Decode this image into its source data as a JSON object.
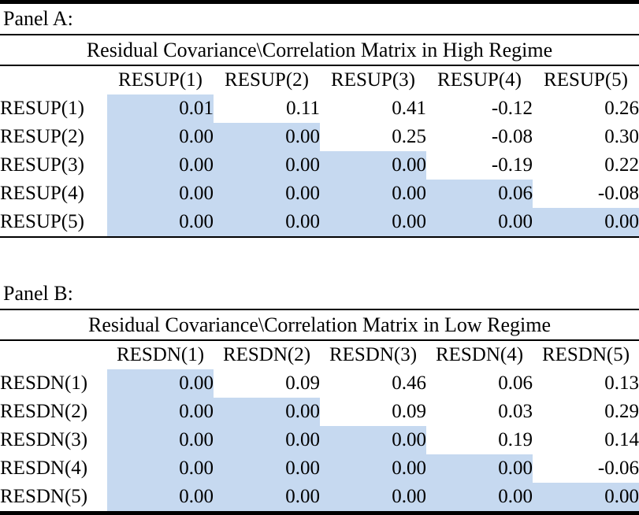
{
  "colors": {
    "highlight": "#c6d9f0",
    "rule": "#000000",
    "background": "#ffffff",
    "text": "#000000"
  },
  "panels": [
    {
      "label": "Panel A:",
      "title": "Residual Covariance\\Correlation Matrix in High Regime",
      "corner": "",
      "columns": [
        "RESUP(1)",
        "RESUP(2)",
        "RESUP(3)",
        "RESUP(4)",
        "RESUP(5)"
      ],
      "rows": [
        {
          "label": "RESUP(1)",
          "values": [
            "0.01",
            "0.11",
            "0.41",
            "-0.12",
            "0.26"
          ]
        },
        {
          "label": "RESUP(2)",
          "values": [
            "0.00",
            "0.00",
            "0.25",
            "-0.08",
            "0.30"
          ]
        },
        {
          "label": "RESUP(3)",
          "values": [
            "0.00",
            "0.00",
            "0.00",
            "-0.19",
            "0.22"
          ]
        },
        {
          "label": "RESUP(4)",
          "values": [
            "0.00",
            "0.00",
            "0.00",
            "0.06",
            "-0.08"
          ]
        },
        {
          "label": "RESUP(5)",
          "values": [
            "0.00",
            "0.00",
            "0.00",
            "0.00",
            "0.00"
          ]
        }
      ]
    },
    {
      "label": "Panel B:",
      "title": "Residual Covariance\\Correlation Matrix in Low Regime",
      "corner": "",
      "columns": [
        "RESDN(1)",
        "RESDN(2)",
        "RESDN(3)",
        "RESDN(4)",
        "RESDN(5)"
      ],
      "rows": [
        {
          "label": "RESDN(1)",
          "values": [
            "0.00",
            "0.09",
            "0.46",
            "0.06",
            "0.13"
          ]
        },
        {
          "label": "RESDN(2)",
          "values": [
            "0.00",
            "0.00",
            "0.09",
            "0.03",
            "0.29"
          ]
        },
        {
          "label": "RESDN(3)",
          "values": [
            "0.00",
            "0.00",
            "0.00",
            "0.19",
            "0.14"
          ]
        },
        {
          "label": "RESDN(4)",
          "values": [
            "0.00",
            "0.00",
            "0.00",
            "0.00",
            "-0.06"
          ]
        },
        {
          "label": "RESDN(5)",
          "values": [
            "0.00",
            "0.00",
            "0.00",
            "0.00",
            "0.00"
          ]
        }
      ]
    }
  ]
}
